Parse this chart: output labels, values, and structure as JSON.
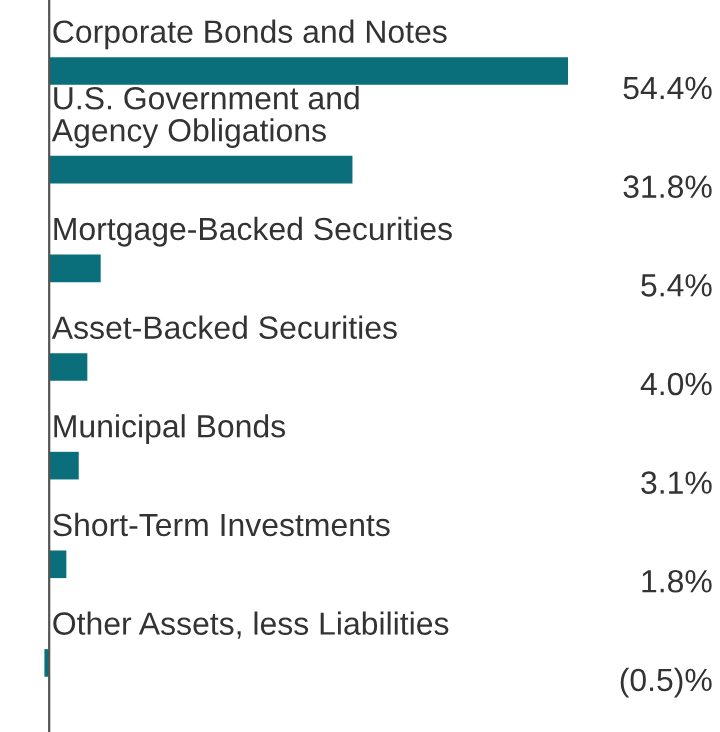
{
  "chart_data": {
    "type": "bar",
    "orientation": "horizontal",
    "categories": [
      "Corporate Bonds and Notes",
      "U.S. Government and\nAgency Obligations",
      "Mortgage-Backed Securities",
      "Asset-Backed Securities",
      "Municipal Bonds",
      "Short-Term Investments",
      "Other Assets, less Liabilities"
    ],
    "values": [
      54.4,
      31.8,
      5.4,
      4.0,
      3.1,
      1.8,
      -0.5
    ],
    "value_labels": [
      "54.4%",
      "31.8%",
      "5.4%",
      "4.0%",
      "3.1%",
      "1.8%",
      "(0.5)%"
    ],
    "color": "#0b6e7b"
  }
}
